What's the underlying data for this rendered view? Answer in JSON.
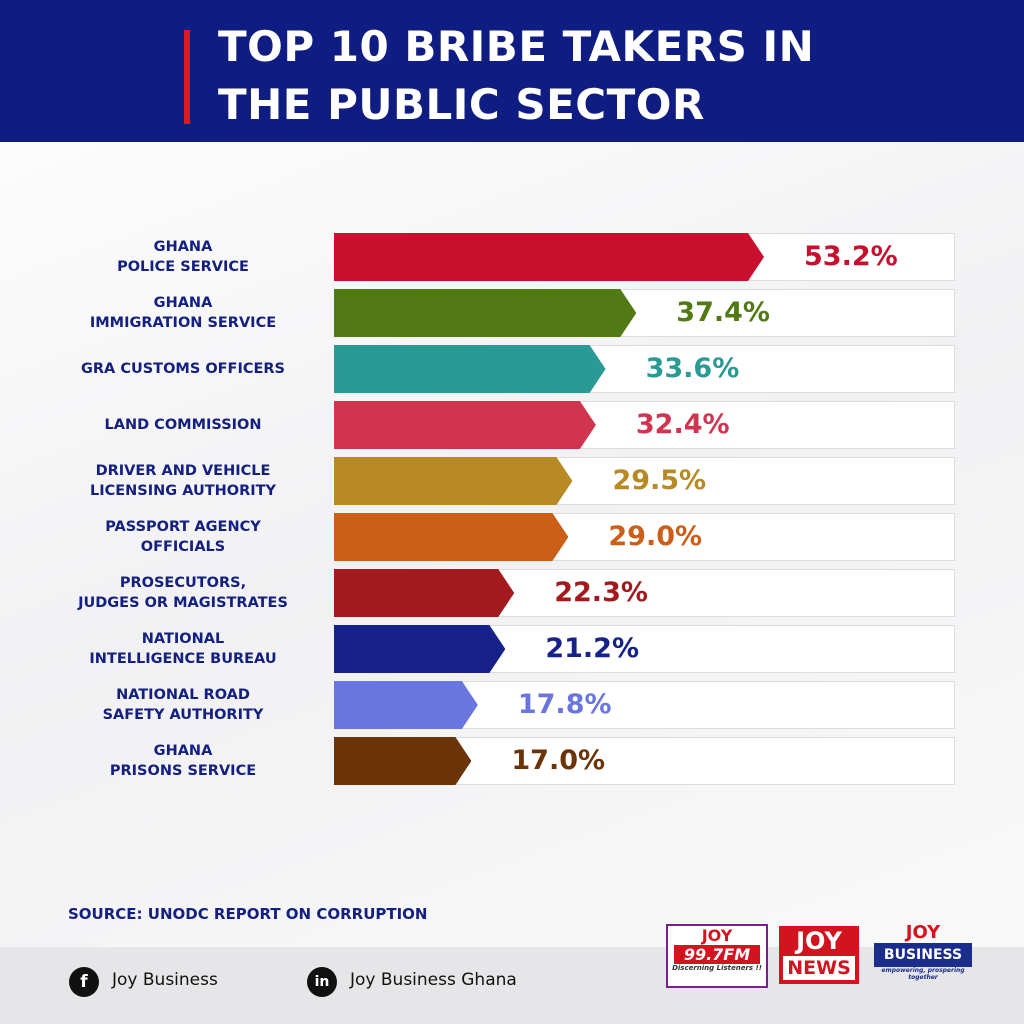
{
  "chart_data": {
    "type": "bar",
    "title": [
      "TOP 10 BRIBE TAKERS IN",
      "THE PUBLIC SECTOR"
    ],
    "categories": [
      "GHANA\nPOLICE SERVICE",
      "GHANA\nIMMIGRATION SERVICE",
      "GRA CUSTOMS OFFICERS",
      "LAND COMMISSION",
      "DRIVER AND VEHICLE\nLICENSING AUTHORITY",
      "PASSPORT AGENCY\nOFFICIALS",
      "PROSECUTORS,\nJUDGES OR MAGISTRATES",
      "NATIONAL\nINTELLIGENCE BUREAU",
      "NATIONAL ROAD\nSAFETY AUTHORITY",
      "GHANA\nPRISONS SERVICE"
    ],
    "values": [
      53.2,
      37.4,
      33.6,
      32.4,
      29.5,
      29.0,
      22.3,
      21.2,
      17.8,
      17.0
    ],
    "value_labels": [
      "53.2%",
      "37.4%",
      "33.6%",
      "32.4%",
      "29.5%",
      "29.0%",
      "22.3%",
      "21.2%",
      "17.8%",
      "17.0%"
    ],
    "colors": [
      "#c8102e",
      "#527a14",
      "#2a9a94",
      "#d0344f",
      "#b88a24",
      "#cc5f18",
      "#a31a1e",
      "#16228a",
      "#6a76e0",
      "#6b3408"
    ],
    "source": "SOURCE: UNODC REPORT ON CORRUPTION"
  },
  "footer": {
    "facebook": "Joy Business",
    "linkedin": "Joy Business Ghana",
    "logos": {
      "joy_fm": "JOY",
      "joy_fm_freq": "99.7FM",
      "joy_fm_tag": "Discerning Listeners !!",
      "joy_news_1": "JOY",
      "joy_news_2": "NEWS",
      "joy_business_1": "JOY",
      "joy_business_2": "BUSINESS",
      "joy_business_tag": "empowering, prospering together"
    }
  }
}
